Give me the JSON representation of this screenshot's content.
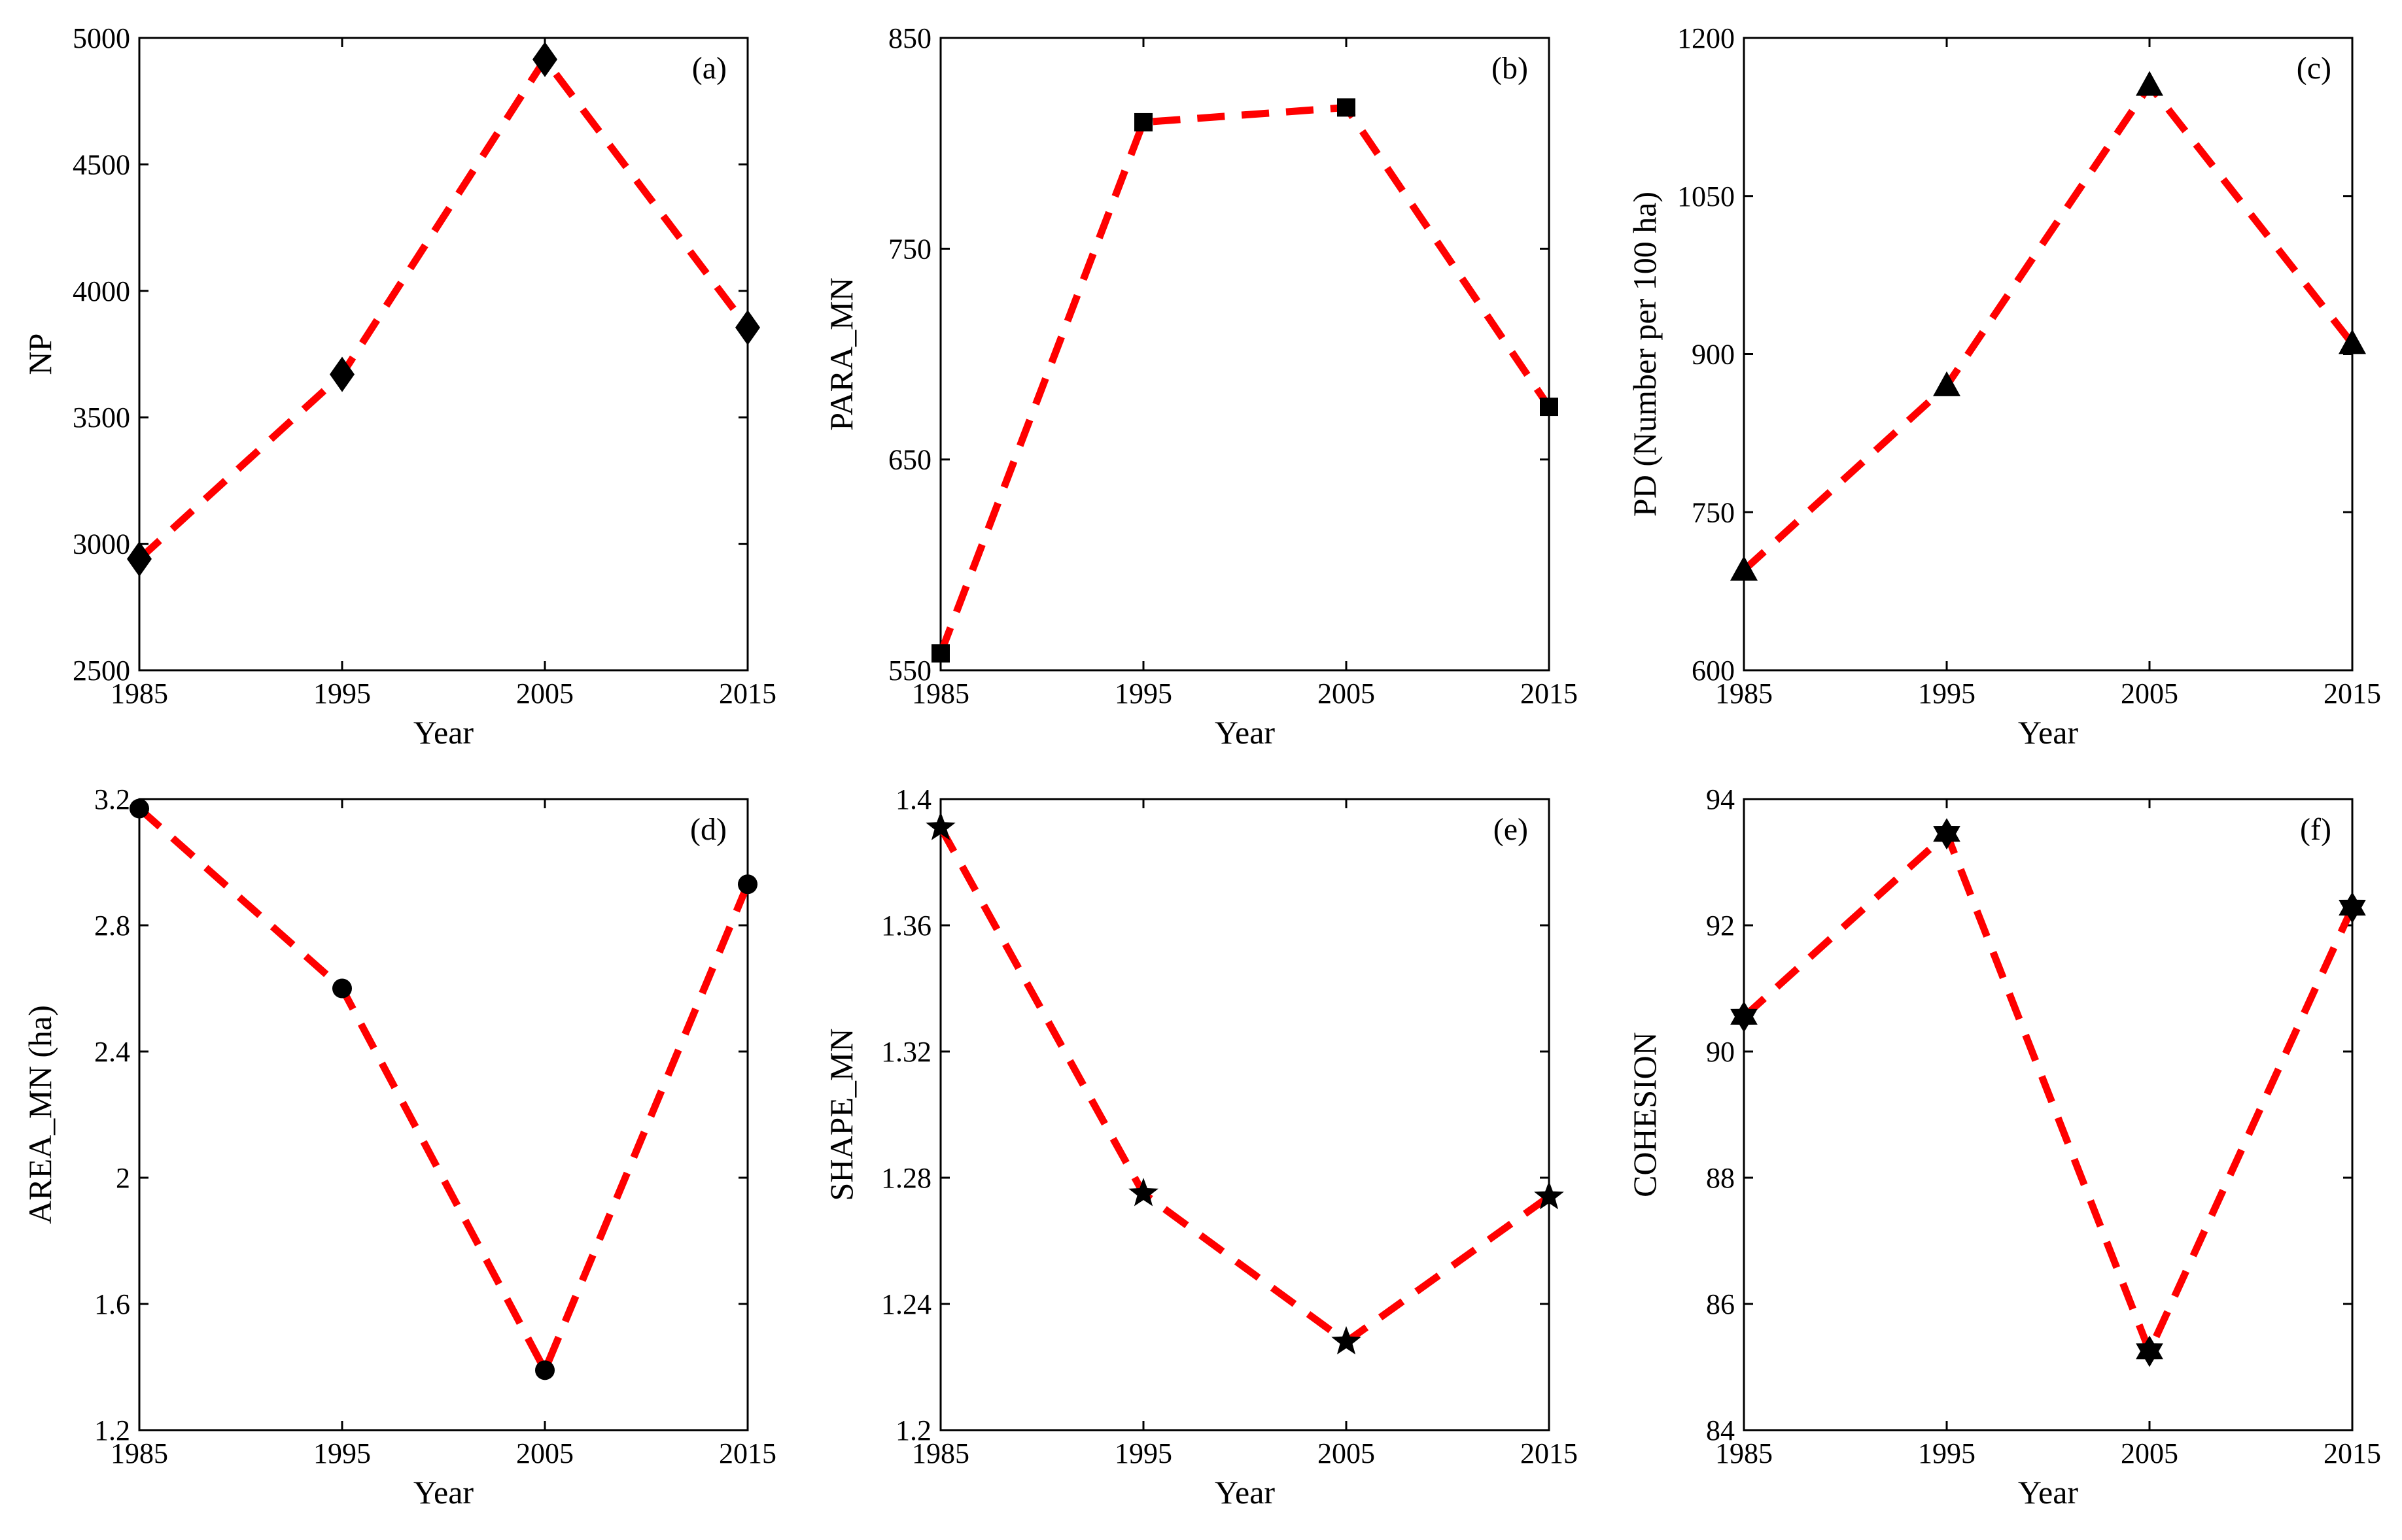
{
  "colors": {
    "line": "#ff0000",
    "marker": "#000000",
    "axis": "#000000",
    "background": "#ffffff"
  },
  "chart_data": [
    {
      "type": "line",
      "panel_label": "(a)",
      "title": "",
      "xlabel": "Year",
      "ylabel": "NP",
      "x": [
        1985,
        1995,
        2005,
        2015
      ],
      "values": [
        2940,
        3670,
        4915,
        3855
      ],
      "marker": "diamond",
      "xlim": [
        1985,
        2015
      ],
      "ylim": [
        2500,
        5000
      ],
      "xticks": [
        "1985",
        "1995",
        "2005",
        "2015"
      ],
      "yticks": [
        "2500",
        "3000",
        "3500",
        "4000",
        "4500",
        "5000"
      ],
      "grid": false
    },
    {
      "type": "line",
      "panel_label": "(b)",
      "title": "",
      "xlabel": "Year",
      "ylabel": "PARA_MN",
      "x": [
        1985,
        1995,
        2005,
        2015
      ],
      "values": [
        558,
        810,
        817,
        675
      ],
      "marker": "square",
      "xlim": [
        1985,
        2015
      ],
      "ylim": [
        550,
        850
      ],
      "xticks": [
        "1985",
        "1995",
        "2005",
        "2015"
      ],
      "yticks": [
        "550",
        "650",
        "750",
        "850"
      ],
      "grid": false
    },
    {
      "type": "line",
      "panel_label": "(c)",
      "title": "",
      "xlabel": "Year",
      "ylabel": "PD (Number per 100 ha)",
      "x": [
        1985,
        1995,
        2005,
        2015
      ],
      "values": [
        695,
        870,
        1155,
        910
      ],
      "marker": "triangle",
      "xlim": [
        1985,
        2015
      ],
      "ylim": [
        600,
        1200
      ],
      "xticks": [
        "1985",
        "1995",
        "2005",
        "2015"
      ],
      "yticks": [
        "600",
        "750",
        "900",
        "1050",
        "1200"
      ],
      "grid": false
    },
    {
      "type": "line",
      "panel_label": "(d)",
      "title": "",
      "xlabel": "Year",
      "ylabel": "AREA_MN (ha)",
      "x": [
        1985,
        1995,
        2005,
        2015
      ],
      "values": [
        3.17,
        2.6,
        1.39,
        2.93
      ],
      "marker": "circle",
      "xlim": [
        1985,
        2015
      ],
      "ylim": [
        1.2,
        3.2
      ],
      "xticks": [
        "1985",
        "1995",
        "2005",
        "2015"
      ],
      "yticks": [
        "1.2",
        "1.6",
        "2",
        "2.4",
        "2.8",
        "3.2"
      ],
      "grid": false
    },
    {
      "type": "line",
      "panel_label": "(e)",
      "title": "",
      "xlabel": "Year",
      "ylabel": "SHAPE_MN",
      "x": [
        1985,
        1995,
        2005,
        2015
      ],
      "values": [
        1.391,
        1.275,
        1.228,
        1.274
      ],
      "marker": "pentagram",
      "xlim": [
        1985,
        2015
      ],
      "ylim": [
        1.2,
        1.4
      ],
      "xticks": [
        "1985",
        "1995",
        "2005",
        "2015"
      ],
      "yticks": [
        "1.2",
        "1.24",
        "1.28",
        "1.32",
        "1.36",
        "1.4"
      ],
      "grid": false
    },
    {
      "type": "line",
      "panel_label": "(f)",
      "title": "",
      "xlabel": "Year",
      "ylabel": "COHESION",
      "x": [
        1985,
        1995,
        2005,
        2015
      ],
      "values": [
        90.55,
        93.45,
        85.25,
        92.28
      ],
      "marker": "hexagram",
      "xlim": [
        1985,
        2015
      ],
      "ylim": [
        84,
        94
      ],
      "xticks": [
        "1985",
        "1995",
        "2005",
        "2015"
      ],
      "yticks": [
        "84",
        "86",
        "88",
        "90",
        "92",
        "94"
      ],
      "grid": false
    }
  ]
}
